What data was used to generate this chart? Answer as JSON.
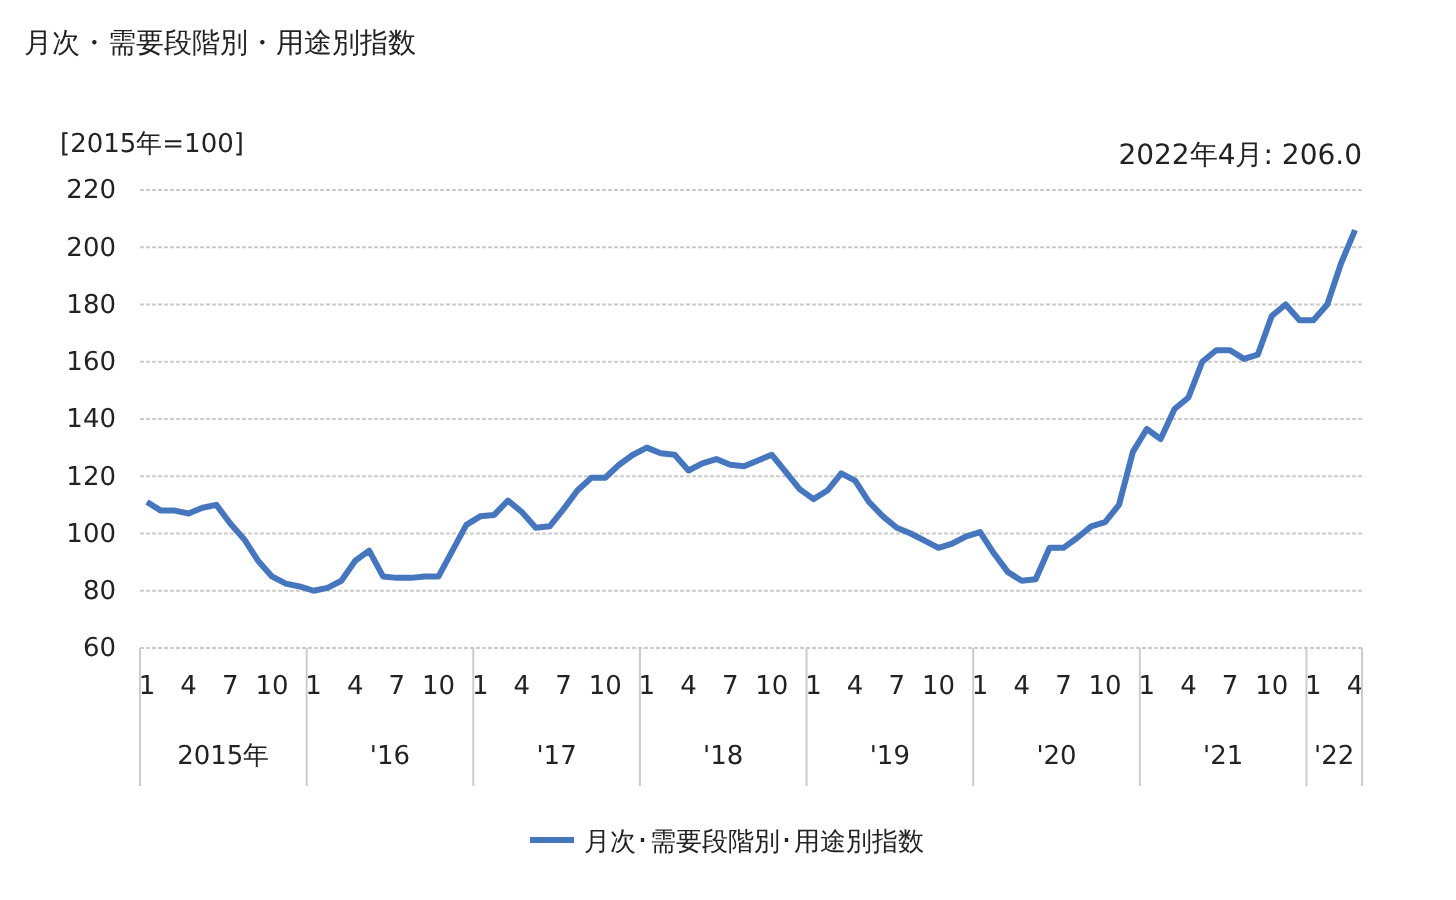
{
  "chart_data": {
    "type": "line",
    "title": "月次・需要段階別・用途別指数",
    "ylabel": "[2015年=100]",
    "annotations": [
      "2022年4月: 206.0",
      "2015年",
      "'16",
      "'17",
      "'18",
      "'19",
      "'20",
      "'21",
      "'22"
    ],
    "categories": [
      "1",
      null,
      null,
      "4",
      null,
      null,
      "7",
      null,
      null,
      "10",
      null,
      null,
      "1",
      null,
      null,
      "4",
      null,
      null,
      "7",
      null,
      null,
      "10",
      null,
      null,
      "1",
      null,
      null,
      "4",
      null,
      null,
      "7",
      null,
      null,
      "10",
      null,
      null,
      "1",
      null,
      null,
      "4",
      null,
      null,
      "7",
      null,
      null,
      "10",
      null,
      null,
      "1",
      null,
      null,
      "4",
      null,
      null,
      "7",
      null,
      null,
      "10",
      null,
      null,
      "1",
      null,
      null,
      "4",
      null,
      null,
      "7",
      null,
      null,
      "10",
      null,
      null,
      "1",
      null,
      null,
      "4",
      null,
      null,
      "7",
      null,
      null,
      "10",
      null,
      null,
      "1",
      null,
      null,
      "4"
    ],
    "series": [
      {
        "name": "月次･需要段階別･用途別指数",
        "color": "#4677be",
        "values": [
          111,
          108,
          108,
          107,
          109,
          110,
          103.5,
          98,
          90.5,
          85,
          82.5,
          81.5,
          80,
          81,
          83.5,
          90.5,
          94,
          85,
          84.5,
          84.5,
          85,
          85,
          94,
          103,
          106,
          106.5,
          111.5,
          107.5,
          102,
          102.5,
          108.5,
          115,
          119.5,
          119.5,
          124,
          127.5,
          130,
          128,
          127.5,
          122,
          124.5,
          126,
          124,
          123.5,
          125.5,
          127.5,
          121.5,
          115.5,
          112,
          115,
          121,
          118.5,
          111,
          106,
          102,
          100,
          97.5,
          95,
          96.5,
          99,
          100.5,
          93,
          86.5,
          83.5,
          84,
          95,
          95,
          98.5,
          102.5,
          104,
          110,
          128.5,
          136.5,
          133,
          143.5,
          147.5,
          160,
          164,
          164,
          161,
          162.5,
          176,
          180,
          174.5,
          174.5,
          180,
          194.5,
          206
        ]
      }
    ],
    "ylim": [
      60,
      220
    ],
    "yticks": [
      60,
      80,
      100,
      120,
      140,
      160,
      180,
      200,
      220
    ],
    "grid": "y",
    "legend": "bottom"
  }
}
